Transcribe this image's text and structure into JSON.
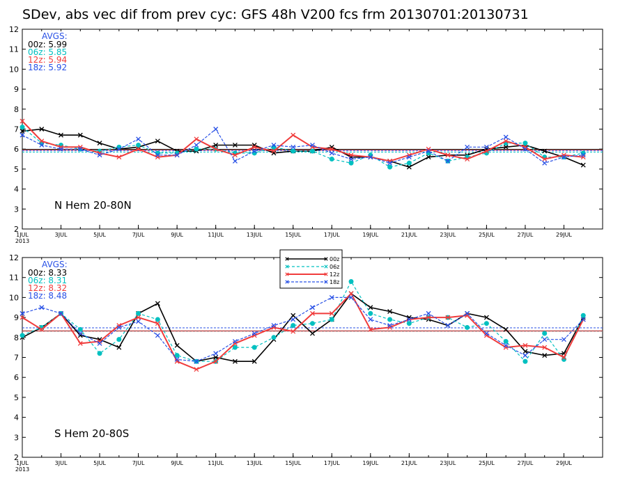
{
  "title": "SDev, abs vec dif from prev cyc: GFS 48h V200 fcs frm 20130701:20130731",
  "colors": {
    "00z": "#000000",
    "06z": "#00c0c0",
    "12z": "#f03c3c",
    "18z": "#2850e6",
    "avgs_header": "#2850e6"
  },
  "legend": {
    "entries": [
      "00z",
      "06z",
      "12z",
      "18z"
    ]
  },
  "chart_data": [
    {
      "type": "line",
      "panel_label": "N Hem 20-80N",
      "ylim": [
        2,
        12
      ],
      "yticks": [
        2,
        3,
        4,
        5,
        6,
        7,
        8,
        9,
        10,
        11,
        12
      ],
      "xlim": [
        1,
        31
      ],
      "x_tick_labels": [
        {
          "day": 1,
          "label": "1JUL",
          "sub": "2013"
        },
        {
          "day": 3,
          "label": "3JUL"
        },
        {
          "day": 5,
          "label": "5JUL"
        },
        {
          "day": 7,
          "label": "7JUL"
        },
        {
          "day": 9,
          "label": "9JUL"
        },
        {
          "day": 11,
          "label": "11JUL"
        },
        {
          "day": 13,
          "label": "13JUL"
        },
        {
          "day": 15,
          "label": "15JUL"
        },
        {
          "day": 17,
          "label": "17JUL"
        },
        {
          "day": 19,
          "label": "19JUL"
        },
        {
          "day": 21,
          "label": "21JUL"
        },
        {
          "day": 23,
          "label": "23JUL"
        },
        {
          "day": 25,
          "label": "25JUL"
        },
        {
          "day": 27,
          "label": "27JUL"
        },
        {
          "day": 29,
          "label": "29JUL"
        }
      ],
      "avgs_title": "AVGS:",
      "averages": [
        {
          "label": "00z:",
          "value": "5.99",
          "num": 5.99
        },
        {
          "label": "06z:",
          "value": "5.85",
          "num": 5.85
        },
        {
          "label": "12z:",
          "value": "5.94",
          "num": 5.94
        },
        {
          "label": "18z:",
          "value": "5.92",
          "num": 5.92
        }
      ],
      "series": [
        {
          "name": "00z",
          "values": [
            6.9,
            7.0,
            6.7,
            6.7,
            6.3,
            6.0,
            6.1,
            6.4,
            5.9,
            5.9,
            6.2,
            6.2,
            6.2,
            5.8,
            5.9,
            5.9,
            6.1,
            5.6,
            5.6,
            5.4,
            5.1,
            5.6,
            5.7,
            5.7,
            6.0,
            6.1,
            6.2,
            5.9,
            5.6,
            5.2
          ]
        },
        {
          "name": "06z",
          "values": [
            7.1,
            6.3,
            6.2,
            6.0,
            5.9,
            6.1,
            6.2,
            5.8,
            5.8,
            6.0,
            6.0,
            5.8,
            5.8,
            6.1,
            5.9,
            5.9,
            5.5,
            5.3,
            5.7,
            5.1,
            5.3,
            5.8,
            5.4,
            5.6,
            5.8,
            6.3,
            6.3,
            5.6,
            5.6,
            5.8
          ]
        },
        {
          "name": "12z",
          "values": [
            7.4,
            6.4,
            6.1,
            6.1,
            5.8,
            5.6,
            6.0,
            5.6,
            5.7,
            6.5,
            6.0,
            5.7,
            6.1,
            5.9,
            6.7,
            6.1,
            6.0,
            5.7,
            5.6,
            5.4,
            5.7,
            6.0,
            5.7,
            5.5,
            5.9,
            6.4,
            6.1,
            5.5,
            5.7,
            5.6
          ]
        },
        {
          "name": "18z",
          "values": [
            6.7,
            6.2,
            6.0,
            6.0,
            5.7,
            6.0,
            6.5,
            5.7,
            5.7,
            6.2,
            7.0,
            5.4,
            5.9,
            6.2,
            6.1,
            6.2,
            5.8,
            5.5,
            5.6,
            5.3,
            5.6,
            5.9,
            5.4,
            6.1,
            6.1,
            6.6,
            6.0,
            5.3,
            5.6,
            5.7
          ]
        }
      ]
    },
    {
      "type": "line",
      "panel_label": "S Hem 20-80S",
      "ylim": [
        2,
        12
      ],
      "yticks": [
        2,
        3,
        4,
        5,
        6,
        7,
        8,
        9,
        10,
        11,
        12
      ],
      "xlim": [
        1,
        31
      ],
      "x_tick_labels": [
        {
          "day": 1,
          "label": "1JUL",
          "sub": "2013"
        },
        {
          "day": 3,
          "label": "3JUL"
        },
        {
          "day": 5,
          "label": "5JUL"
        },
        {
          "day": 7,
          "label": "7JUL"
        },
        {
          "day": 9,
          "label": "9JUL"
        },
        {
          "day": 11,
          "label": "11JUL"
        },
        {
          "day": 13,
          "label": "13JUL"
        },
        {
          "day": 15,
          "label": "15JUL"
        },
        {
          "day": 17,
          "label": "17JUL"
        },
        {
          "day": 19,
          "label": "19JUL"
        },
        {
          "day": 21,
          "label": "21JUL"
        },
        {
          "day": 23,
          "label": "23JUL"
        },
        {
          "day": 25,
          "label": "25JUL"
        },
        {
          "day": 27,
          "label": "27JUL"
        },
        {
          "day": 29,
          "label": "29JUL"
        }
      ],
      "avgs_title": "AVGS:",
      "averages": [
        {
          "label": "00z:",
          "value": "8.33",
          "num": 8.33
        },
        {
          "label": "06z:",
          "value": "8.31",
          "num": 8.31
        },
        {
          "label": "12z:",
          "value": "8.32",
          "num": 8.32
        },
        {
          "label": "18z:",
          "value": "8.48",
          "num": 8.48
        }
      ],
      "series": [
        {
          "name": "00z",
          "values": [
            8.0,
            8.5,
            9.2,
            8.1,
            7.9,
            7.5,
            9.2,
            9.7,
            7.6,
            6.8,
            7.0,
            6.8,
            6.8,
            7.9,
            9.1,
            8.2,
            8.9,
            10.2,
            9.5,
            9.3,
            9.0,
            8.9,
            8.6,
            9.2,
            9.0,
            8.4,
            7.3,
            7.1,
            7.2,
            9.0
          ]
        },
        {
          "name": "06z",
          "values": [
            8.1,
            8.5,
            9.2,
            8.4,
            7.2,
            7.9,
            9.2,
            8.9,
            7.1,
            6.8,
            6.8,
            7.5,
            7.5,
            8.0,
            8.6,
            8.7,
            8.9,
            10.8,
            9.2,
            8.9,
            8.7,
            9.0,
            9.0,
            8.5,
            8.7,
            7.8,
            6.8,
            8.2,
            6.9,
            9.1
          ]
        },
        {
          "name": "12z",
          "values": [
            9.0,
            8.4,
            9.2,
            7.7,
            7.8,
            8.6,
            9.0,
            8.7,
            6.8,
            6.4,
            6.8,
            7.7,
            8.1,
            8.5,
            8.3,
            9.2,
            9.2,
            10.2,
            8.4,
            8.5,
            8.9,
            9.0,
            9.0,
            9.1,
            8.1,
            7.5,
            7.6,
            7.5,
            7.0,
            8.9
          ]
        },
        {
          "name": "18z",
          "values": [
            9.2,
            9.5,
            9.2,
            8.2,
            7.7,
            8.5,
            8.8,
            8.1,
            6.9,
            6.8,
            7.2,
            7.8,
            8.2,
            8.6,
            8.9,
            9.5,
            10.0,
            10.0,
            8.9,
            8.6,
            8.9,
            9.2,
            8.6,
            9.2,
            8.2,
            7.6,
            7.1,
            7.9,
            7.9,
            8.9
          ]
        }
      ]
    }
  ]
}
